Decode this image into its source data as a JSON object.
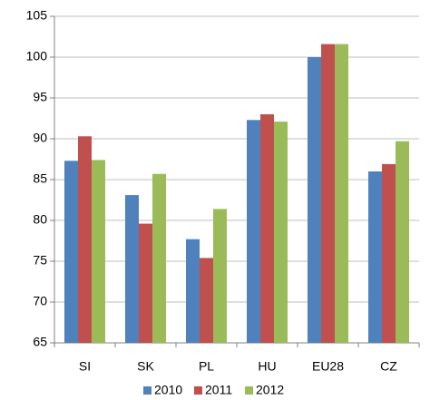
{
  "chart_data": {
    "type": "bar",
    "categories": [
      "SI",
      "SK",
      "PL",
      "HU",
      "EU28",
      "CZ"
    ],
    "series": [
      {
        "name": "2010",
        "color": "#4f81bd",
        "values": [
          87.3,
          83.1,
          77.7,
          92.3,
          100,
          86.0
        ]
      },
      {
        "name": "2011",
        "color": "#c0504d",
        "values": [
          90.3,
          79.6,
          75.4,
          93.0,
          101.6,
          86.9
        ]
      },
      {
        "name": "2012",
        "color": "#9bbb59",
        "values": [
          87.4,
          85.7,
          81.4,
          92.1,
          101.6,
          89.7
        ]
      }
    ],
    "ylim": [
      65,
      105
    ],
    "yticks": [
      65,
      70,
      75,
      80,
      85,
      90,
      95,
      100,
      105
    ],
    "grid": true
  }
}
